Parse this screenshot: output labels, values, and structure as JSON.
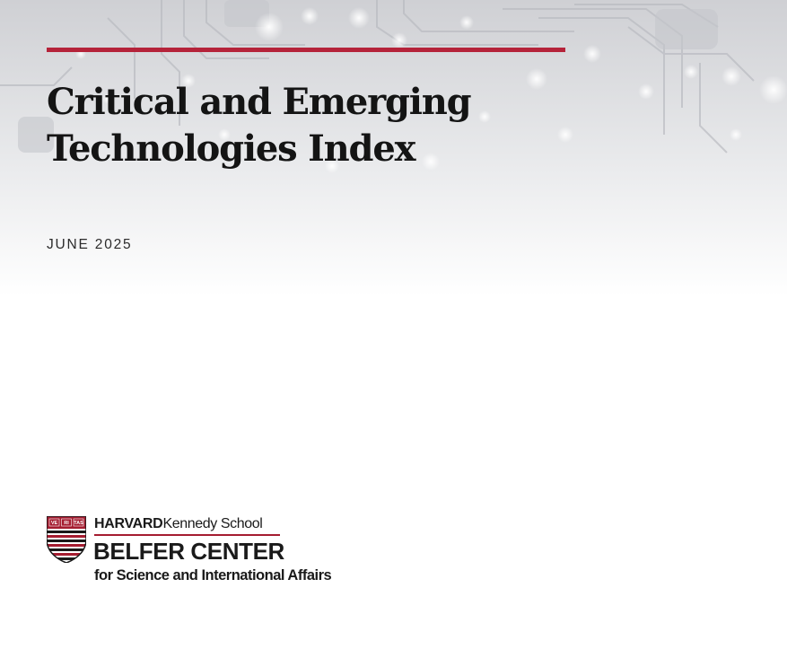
{
  "cover": {
    "title_line1": "Critical and Emerging",
    "title_line2": "Technologies Index",
    "date": "JUNE 2025",
    "accent_color": "#b5233a"
  },
  "logo": {
    "school_bold": "HARVARD",
    "school_rest": "Kennedy School",
    "center_name": "BELFER CENTER",
    "center_subtitle": "for Science and International Affairs",
    "shield_text": [
      "VE",
      "RI",
      "TAS"
    ],
    "shield_colors": {
      "crimson": "#a51c30",
      "dark": "#1a1a1a"
    }
  }
}
